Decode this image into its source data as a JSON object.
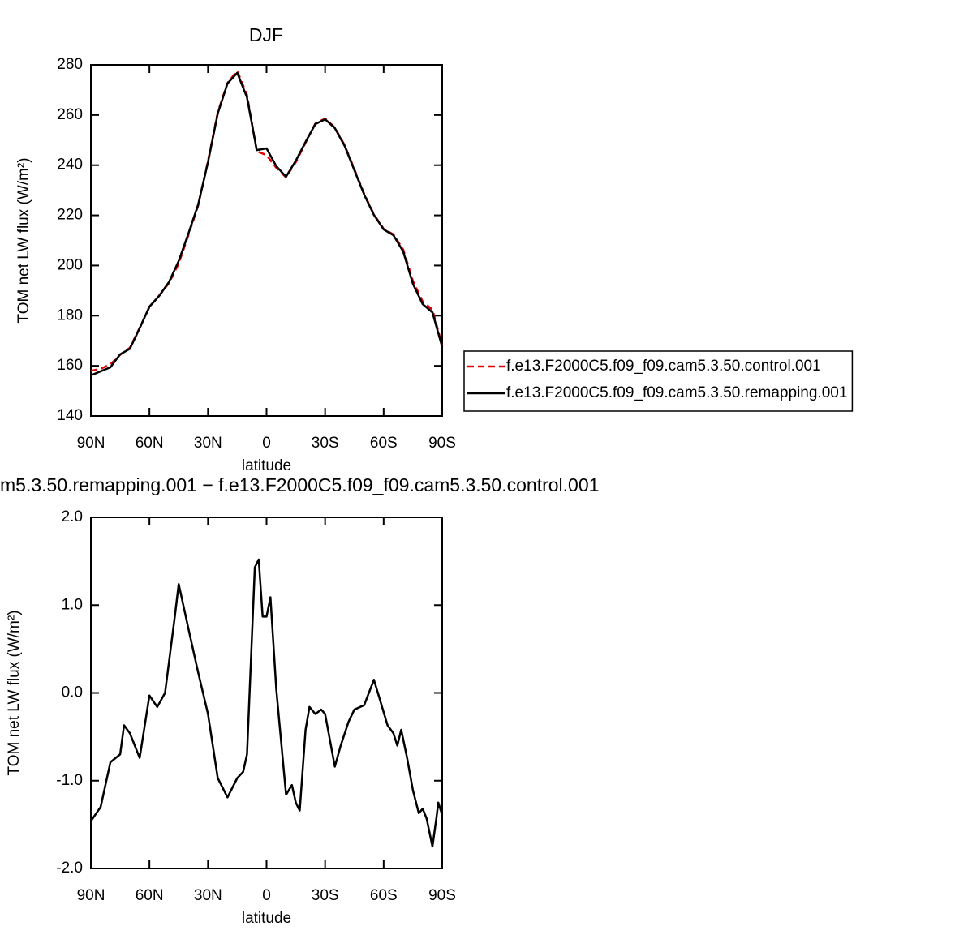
{
  "chart_data": [
    {
      "type": "line",
      "title": "DJF",
      "xlabel": "latitude",
      "ylabel": "TOM net LW flux (W/m²)",
      "x": [
        90,
        85,
        80,
        75,
        70,
        65,
        60,
        55,
        50,
        45,
        40,
        35,
        30,
        25,
        20,
        15,
        10,
        5,
        0,
        -5,
        -10,
        -15,
        -20,
        -25,
        -30,
        -35,
        -40,
        -45,
        -50,
        -55,
        -60,
        -65,
        -70,
        -75,
        -80,
        -85,
        -90
      ],
      "series": [
        {
          "name": "f.e13.F2000C5.f09_f09.cam5.3.50.control.001",
          "color": "#e00000",
          "line_style": "dashed",
          "values": [
            158.0,
            158.8,
            160.6,
            164.4,
            167.2,
            175.2,
            183.4,
            188.0,
            193.0,
            200.8,
            212.2,
            224.0,
            241.6,
            261.0,
            272.8,
            277.6,
            268.0,
            245.6,
            244.0,
            239.0,
            235.2,
            241.2,
            249.0,
            256.6,
            258.6,
            255.0,
            248.0,
            238.4,
            228.6,
            220.4,
            214.6,
            212.4,
            206.4,
            193.8,
            185.6,
            182.4,
            168.0
          ]
        },
        {
          "name": "f.e13.F2000C5.f09_f09.cam5.3.50.remapping.001",
          "color": "#000000",
          "line_style": "solid",
          "values": [
            156.2,
            157.8,
            159.4,
            164.6,
            166.8,
            175.0,
            183.6,
            187.9,
            193.4,
            201.8,
            212.8,
            224.4,
            241.2,
            260.6,
            272.6,
            276.8,
            267.0,
            246.0,
            246.7,
            239.6,
            235.4,
            241.8,
            249.3,
            256.4,
            258.3,
            254.8,
            247.7,
            238.0,
            228.3,
            220.2,
            214.4,
            212.1,
            205.6,
            192.7,
            184.6,
            181.3,
            167.5
          ]
        }
      ],
      "xlim": [
        90,
        -90
      ],
      "xticks": [
        {
          "value": 90,
          "label": "90N"
        },
        {
          "value": 60,
          "label": "60N"
        },
        {
          "value": 30,
          "label": "30N"
        },
        0,
        {
          "value": -30,
          "label": "30S"
        },
        {
          "value": -60,
          "label": "60S"
        },
        {
          "value": -90,
          "label": "90S"
        }
      ],
      "ylim": [
        140,
        280
      ],
      "yticks": [
        140,
        160,
        180,
        200,
        220,
        240,
        260,
        280
      ],
      "legend": "right"
    },
    {
      "type": "line",
      "title": "m5.3.50.remapping.001 − f.e13.F2000C5.f09_f09.cam5.3.50.control.001",
      "xlabel": "latitude",
      "ylabel": "TOM net LW flux (W/m²)",
      "x": [
        90,
        85,
        80,
        75,
        73,
        70,
        65,
        60,
        56,
        52,
        47,
        45,
        40,
        35,
        30,
        25,
        20,
        15,
        12,
        10,
        6,
        4,
        2,
        0,
        -2,
        -5,
        -10,
        -13,
        -15,
        -17,
        -20,
        -22,
        -25,
        -28,
        -30,
        -35,
        -38,
        -42,
        -45,
        -50,
        -55,
        -58,
        -62,
        -65,
        -67,
        -69,
        -72,
        -75,
        -78,
        -80,
        -82,
        -85,
        -87,
        -88,
        -90
      ],
      "series": [
        {
          "color": "#000000",
          "line_style": "solid",
          "values": [
            -1.46,
            -1.3,
            -0.79,
            -0.7,
            -0.37,
            -0.46,
            -0.74,
            -0.03,
            -0.16,
            0.0,
            0.87,
            1.24,
            0.73,
            0.23,
            -0.24,
            -0.97,
            -1.19,
            -0.97,
            -0.9,
            -0.7,
            1.43,
            1.52,
            0.87,
            0.87,
            1.09,
            0.04,
            -1.16,
            -1.05,
            -1.25,
            -1.34,
            -0.42,
            -0.16,
            -0.24,
            -0.19,
            -0.24,
            -0.84,
            -0.6,
            -0.33,
            -0.19,
            -0.14,
            0.15,
            -0.07,
            -0.37,
            -0.46,
            -0.6,
            -0.42,
            -0.74,
            -1.11,
            -1.37,
            -1.32,
            -1.43,
            -1.75,
            -1.43,
            -1.25,
            -1.39
          ]
        }
      ],
      "xlim": [
        90,
        -90
      ],
      "xticks": [
        {
          "value": 90,
          "label": "90N"
        },
        {
          "value": 60,
          "label": "60N"
        },
        {
          "value": 30,
          "label": "30N"
        },
        0,
        {
          "value": -30,
          "label": "30S"
        },
        {
          "value": -60,
          "label": "60S"
        },
        {
          "value": -90,
          "label": "90S"
        }
      ],
      "ylim": [
        -2,
        2
      ],
      "yticks": [
        {
          "value": -2,
          "label": "-2.0"
        },
        {
          "value": -1,
          "label": "-1.0"
        },
        {
          "value": 0,
          "label": "0.0"
        },
        {
          "value": 1,
          "label": "1.0"
        },
        {
          "value": 2,
          "label": "2.0"
        }
      ]
    }
  ]
}
